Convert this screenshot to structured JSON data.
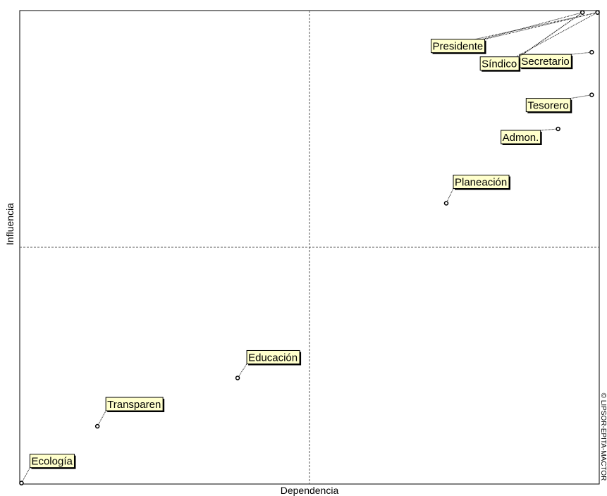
{
  "chart_data": {
    "type": "scatter",
    "title": "",
    "xlabel": "Dependencia",
    "ylabel": "Influencia",
    "xlim": [
      0,
      100
    ],
    "ylim": [
      0,
      100
    ],
    "grid": false,
    "quadrant_lines": {
      "x": 50,
      "y": 50
    },
    "points": [
      {
        "label": "Ecología",
        "x": 0.3,
        "y": 0.2
      },
      {
        "label": "Transparen",
        "x": 13.4,
        "y": 12.2
      },
      {
        "label": "Educación",
        "x": 37.6,
        "y": 22.4
      },
      {
        "label": "Planeación",
        "x": 73.6,
        "y": 59.3
      },
      {
        "label": "Admon.",
        "x": 92.9,
        "y": 75.0
      },
      {
        "label": "Tesorero",
        "x": 98.7,
        "y": 82.2
      },
      {
        "label": "Secretario",
        "x": 98.7,
        "y": 91.2
      },
      {
        "label": "Síndico",
        "x": 97.1,
        "y": 99.6
      },
      {
        "label": "Presidente",
        "x": 99.7,
        "y": 99.6
      }
    ],
    "colors": {
      "label_bg": "#ffffcc",
      "marker": "#000000",
      "frame": "#000000"
    }
  },
  "credit": "© LIPSOR-EPITA-MACTOR"
}
